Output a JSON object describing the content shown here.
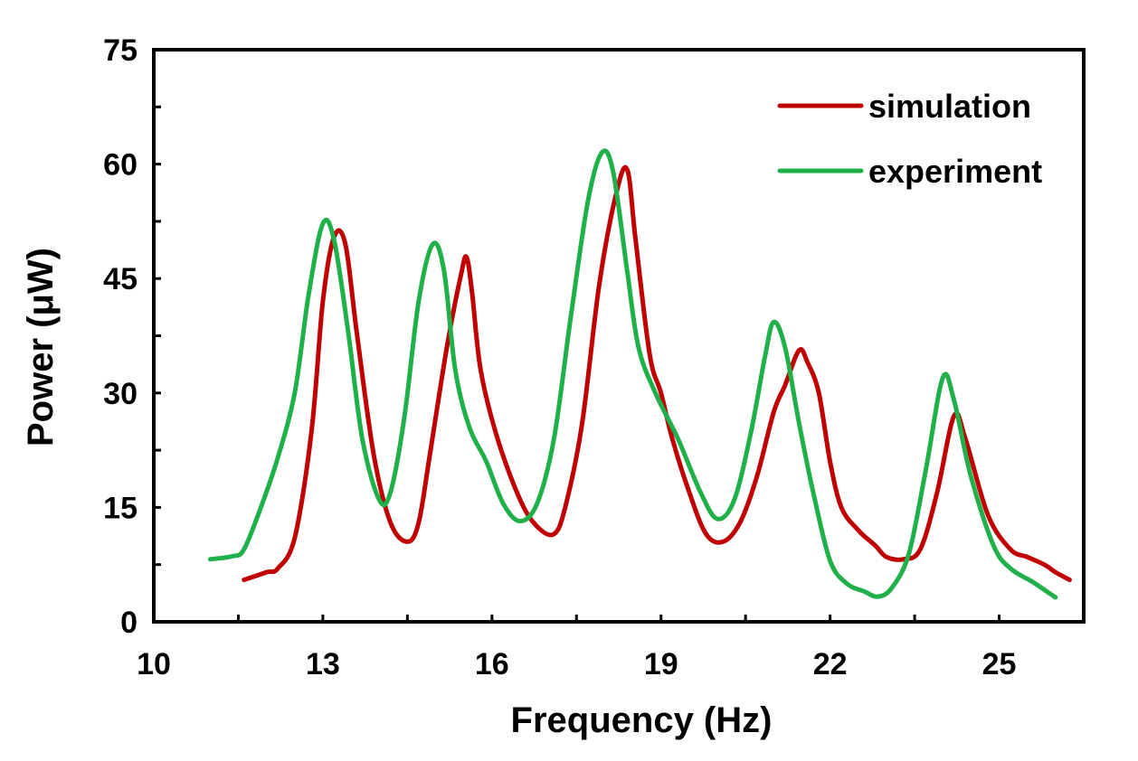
{
  "chart_data": {
    "type": "line",
    "title": "",
    "xlabel": "Frequency (Hz)",
    "ylabel": "Power (μW)",
    "xlim": [
      10,
      26.5
    ],
    "ylim": [
      0,
      75
    ],
    "x_ticks": [
      10,
      13,
      16,
      19,
      22,
      25
    ],
    "y_ticks": [
      0,
      15,
      30,
      45,
      60,
      75
    ],
    "x_tick_labels": [
      "10",
      "13",
      "16",
      "19",
      "22",
      "25"
    ],
    "y_tick_labels": [
      "0",
      "15",
      "30",
      "45",
      "60",
      "75"
    ],
    "grid": false,
    "legend_position": "top-right",
    "series": [
      {
        "name": "simulation",
        "color": "#c00000",
        "points": [
          [
            11.6,
            5.5
          ],
          [
            12.0,
            6.5
          ],
          [
            12.2,
            7.0
          ],
          [
            12.5,
            11.0
          ],
          [
            12.8,
            25.0
          ],
          [
            13.0,
            42.0
          ],
          [
            13.2,
            50.5
          ],
          [
            13.4,
            49.5
          ],
          [
            13.6,
            38.0
          ],
          [
            13.9,
            22.0
          ],
          [
            14.2,
            13.0
          ],
          [
            14.5,
            10.5
          ],
          [
            14.7,
            13.0
          ],
          [
            14.9,
            22.0
          ],
          [
            15.2,
            36.0
          ],
          [
            15.45,
            45.5
          ],
          [
            15.55,
            47.8
          ],
          [
            15.65,
            43.0
          ],
          [
            15.8,
            33.0
          ],
          [
            16.1,
            24.0
          ],
          [
            16.5,
            16.0
          ],
          [
            16.8,
            12.5
          ],
          [
            17.1,
            11.5
          ],
          [
            17.3,
            15.0
          ],
          [
            17.6,
            26.0
          ],
          [
            17.9,
            44.0
          ],
          [
            18.2,
            56.0
          ],
          [
            18.4,
            59.3
          ],
          [
            18.55,
            50.0
          ],
          [
            18.8,
            35.0
          ],
          [
            19.0,
            30.0
          ],
          [
            19.2,
            24.0
          ],
          [
            19.5,
            17.0
          ],
          [
            19.8,
            11.5
          ],
          [
            20.1,
            10.5
          ],
          [
            20.4,
            13.0
          ],
          [
            20.7,
            19.0
          ],
          [
            21.0,
            27.5
          ],
          [
            21.2,
            31.0
          ],
          [
            21.45,
            35.6
          ],
          [
            21.6,
            34.0
          ],
          [
            21.8,
            30.0
          ],
          [
            22.0,
            21.0
          ],
          [
            22.2,
            15.0
          ],
          [
            22.5,
            12.0
          ],
          [
            22.8,
            10.0
          ],
          [
            23.0,
            8.5
          ],
          [
            23.3,
            8.2
          ],
          [
            23.6,
            9.5
          ],
          [
            23.9,
            17.0
          ],
          [
            24.2,
            27.0
          ],
          [
            24.4,
            24.0
          ],
          [
            24.8,
            14.0
          ],
          [
            25.2,
            9.5
          ],
          [
            25.5,
            8.5
          ],
          [
            25.8,
            7.5
          ],
          [
            26.0,
            6.5
          ],
          [
            26.25,
            5.5
          ]
        ]
      },
      {
        "name": "experiment",
        "color": "#1fb04a",
        "points": [
          [
            11.0,
            8.2
          ],
          [
            11.4,
            8.6
          ],
          [
            11.6,
            9.5
          ],
          [
            11.9,
            15.0
          ],
          [
            12.2,
            21.5
          ],
          [
            12.5,
            30.0
          ],
          [
            12.75,
            43.0
          ],
          [
            13.0,
            52.2
          ],
          [
            13.2,
            50.0
          ],
          [
            13.45,
            38.0
          ],
          [
            13.7,
            24.0
          ],
          [
            14.0,
            16.0
          ],
          [
            14.2,
            17.0
          ],
          [
            14.45,
            27.0
          ],
          [
            14.7,
            42.0
          ],
          [
            14.95,
            49.5
          ],
          [
            15.15,
            46.0
          ],
          [
            15.35,
            33.0
          ],
          [
            15.6,
            25.5
          ],
          [
            15.9,
            21.0
          ],
          [
            16.2,
            15.5
          ],
          [
            16.5,
            13.2
          ],
          [
            16.8,
            15.5
          ],
          [
            17.1,
            24.0
          ],
          [
            17.4,
            40.0
          ],
          [
            17.7,
            55.0
          ],
          [
            17.95,
            61.5
          ],
          [
            18.15,
            59.0
          ],
          [
            18.4,
            46.0
          ],
          [
            18.6,
            36.0
          ],
          [
            18.9,
            30.0
          ],
          [
            19.3,
            24.0
          ],
          [
            19.7,
            17.0
          ],
          [
            20.0,
            13.5
          ],
          [
            20.3,
            16.0
          ],
          [
            20.6,
            25.0
          ],
          [
            20.85,
            35.0
          ],
          [
            21.0,
            39.3
          ],
          [
            21.2,
            36.0
          ],
          [
            21.45,
            26.0
          ],
          [
            21.7,
            17.0
          ],
          [
            22.0,
            8.0
          ],
          [
            22.3,
            5.0
          ],
          [
            22.6,
            4.0
          ],
          [
            22.85,
            3.3
          ],
          [
            23.1,
            4.5
          ],
          [
            23.4,
            9.0
          ],
          [
            23.7,
            20.0
          ],
          [
            24.0,
            32.0
          ],
          [
            24.2,
            29.0
          ],
          [
            24.5,
            19.0
          ],
          [
            24.9,
            10.0
          ],
          [
            25.2,
            7.0
          ],
          [
            25.6,
            5.2
          ],
          [
            26.0,
            3.2
          ]
        ]
      }
    ]
  }
}
